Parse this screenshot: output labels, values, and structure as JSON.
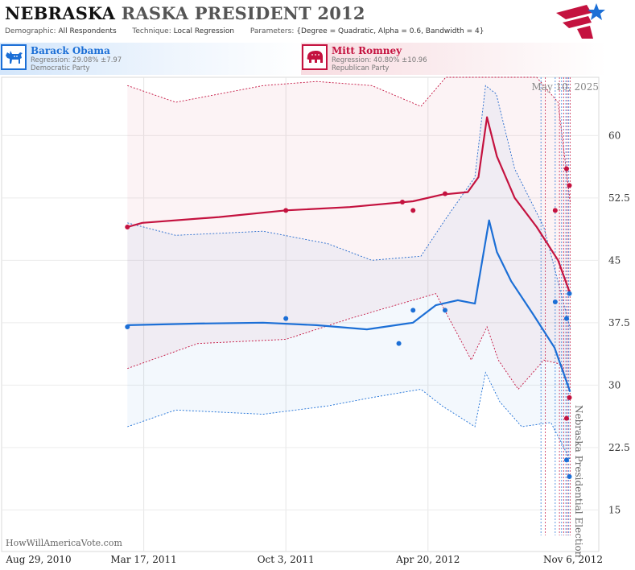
{
  "header": {
    "title_state": "NEBRASKA",
    "title_rest": "RASKA PRESIDENT 2012",
    "demographic_label": "Demographic:",
    "demographic_value": "All Respondents",
    "technique_label": "Technique:",
    "technique_value": "Local Regression",
    "parameters_label": "Parameters:",
    "parameters_value": "{Degree = Quadratic, Alpha = 0.6, Bandwidth = 4}"
  },
  "candidates": {
    "dem": {
      "name": "Barack Obama",
      "regression": "Regression: 29.08% ±7.97",
      "party": "Democratic Party",
      "color": "#1c6fd6"
    },
    "rep": {
      "name": "Mitt Romney",
      "regression": "Regression: 40.80% ±10.96",
      "party": "Republican Party",
      "color": "#c4123f"
    }
  },
  "watermark": "HowWillAmericaVote.com",
  "chart_data": {
    "type": "line",
    "date_label": "May 10, 2025",
    "event_label": "Nebraska Presidential Election",
    "x_ticks": [
      "Aug 29, 2010",
      "Mar 17, 2011",
      "Oct 3, 2011",
      "Apr 20, 2012",
      "Nov 6, 2012"
    ],
    "x_range": [
      "2010-08-29",
      "2012-11-06"
    ],
    "ylim": [
      10,
      67
    ],
    "y_ticks": [
      15,
      22.5,
      30,
      37.5,
      45,
      52.5,
      60
    ],
    "y_tick_labels": [
      "15",
      "22.5",
      "30",
      "37.5",
      "45",
      "52.5",
      "60"
    ],
    "grid": true,
    "poll_dates": [
      "2012-09-26",
      "2012-10-02",
      "2012-10-16",
      "2012-10-22",
      "2012-10-25",
      "2012-10-28",
      "2012-10-31",
      "2012-11-02",
      "2012-11-04",
      "2012-11-06"
    ],
    "series": [
      {
        "name": "Barack Obama",
        "color": "#1c6fd6",
        "points": [
          {
            "x": "2011-02-22",
            "y": 37
          },
          {
            "x": "2011-10-03",
            "y": 38
          },
          {
            "x": "2012-03-10",
            "y": 35
          },
          {
            "x": "2012-03-30",
            "y": 39
          },
          {
            "x": "2012-05-14",
            "y": 39
          },
          {
            "x": "2012-10-16",
            "y": 40
          },
          {
            "x": "2012-11-01",
            "y": 38
          },
          {
            "x": "2012-11-01",
            "y": 21
          },
          {
            "x": "2012-11-05",
            "y": 41
          },
          {
            "x": "2012-11-05",
            "y": 19
          }
        ],
        "trend": [
          {
            "x": "2011-02-22",
            "y": 37.2
          },
          {
            "x": "2011-06-01",
            "y": 37.4
          },
          {
            "x": "2011-09-01",
            "y": 37.5
          },
          {
            "x": "2011-11-15",
            "y": 37.2
          },
          {
            "x": "2012-01-25",
            "y": 36.7
          },
          {
            "x": "2012-03-30",
            "y": 37.5
          },
          {
            "x": "2012-05-01",
            "y": 39.6
          },
          {
            "x": "2012-06-01",
            "y": 40.2
          },
          {
            "x": "2012-06-25",
            "y": 39.8
          },
          {
            "x": "2012-07-15",
            "y": 49.8
          },
          {
            "x": "2012-07-26",
            "y": 46
          },
          {
            "x": "2012-08-15",
            "y": 42.5
          },
          {
            "x": "2012-09-15",
            "y": 38.5
          },
          {
            "x": "2012-10-15",
            "y": 34.5
          },
          {
            "x": "2012-11-06",
            "y": 29.2
          }
        ],
        "upper": [
          {
            "x": "2011-02-22",
            "y": 49.5
          },
          {
            "x": "2011-05-01",
            "y": 48
          },
          {
            "x": "2011-09-01",
            "y": 48.5
          },
          {
            "x": "2011-12-01",
            "y": 47
          },
          {
            "x": "2012-02-01",
            "y": 45
          },
          {
            "x": "2012-04-10",
            "y": 45.5
          },
          {
            "x": "2012-05-15",
            "y": 50
          },
          {
            "x": "2012-06-25",
            "y": 55
          },
          {
            "x": "2012-07-10",
            "y": 66
          },
          {
            "x": "2012-07-25",
            "y": 65
          },
          {
            "x": "2012-08-20",
            "y": 56
          },
          {
            "x": "2012-09-30",
            "y": 49
          },
          {
            "x": "2012-11-06",
            "y": 36.8
          }
        ],
        "lower": [
          {
            "x": "2011-02-22",
            "y": 25
          },
          {
            "x": "2011-05-01",
            "y": 27
          },
          {
            "x": "2011-09-01",
            "y": 26.5
          },
          {
            "x": "2011-12-01",
            "y": 27.5
          },
          {
            "x": "2012-02-01",
            "y": 28.5
          },
          {
            "x": "2012-04-10",
            "y": 29.5
          },
          {
            "x": "2012-05-10",
            "y": 27.5
          },
          {
            "x": "2012-06-25",
            "y": 25
          },
          {
            "x": "2012-07-10",
            "y": 31.5
          },
          {
            "x": "2012-07-30",
            "y": 28
          },
          {
            "x": "2012-08-30",
            "y": 25
          },
          {
            "x": "2012-10-10",
            "y": 25.5
          },
          {
            "x": "2012-11-06",
            "y": 21
          }
        ]
      },
      {
        "name": "Mitt Romney",
        "color": "#c4123f",
        "points": [
          {
            "x": "2011-02-22",
            "y": 49
          },
          {
            "x": "2011-10-03",
            "y": 51
          },
          {
            "x": "2012-03-15",
            "y": 52
          },
          {
            "x": "2012-03-30",
            "y": 51
          },
          {
            "x": "2012-05-14",
            "y": 53
          },
          {
            "x": "2012-10-16",
            "y": 51
          },
          {
            "x": "2012-11-01",
            "y": 56
          },
          {
            "x": "2012-11-01",
            "y": 26
          },
          {
            "x": "2012-11-05",
            "y": 54
          },
          {
            "x": "2012-11-05",
            "y": 28.5
          }
        ],
        "trend": [
          {
            "x": "2011-02-22",
            "y": 49
          },
          {
            "x": "2011-03-15",
            "y": 49.5
          },
          {
            "x": "2011-07-01",
            "y": 50.2
          },
          {
            "x": "2011-10-03",
            "y": 51
          },
          {
            "x": "2012-01-01",
            "y": 51.4
          },
          {
            "x": "2012-03-30",
            "y": 52.1
          },
          {
            "x": "2012-05-10",
            "y": 52.9
          },
          {
            "x": "2012-06-15",
            "y": 53.2
          },
          {
            "x": "2012-06-30",
            "y": 55
          },
          {
            "x": "2012-07-12",
            "y": 62.2
          },
          {
            "x": "2012-07-26",
            "y": 57.5
          },
          {
            "x": "2012-08-20",
            "y": 52.5
          },
          {
            "x": "2012-09-20",
            "y": 49
          },
          {
            "x": "2012-10-20",
            "y": 45
          },
          {
            "x": "2012-11-06",
            "y": 41
          }
        ],
        "upper": [
          {
            "x": "2011-02-22",
            "y": 66
          },
          {
            "x": "2011-05-01",
            "y": 64
          },
          {
            "x": "2011-09-01",
            "y": 66
          },
          {
            "x": "2011-11-15",
            "y": 66.5
          },
          {
            "x": "2012-02-01",
            "y": 66
          },
          {
            "x": "2012-04-10",
            "y": 63.5
          },
          {
            "x": "2012-05-15",
            "y": 67
          },
          {
            "x": "2012-06-30",
            "y": 67
          },
          {
            "x": "2012-07-15",
            "y": 67
          },
          {
            "x": "2012-08-05",
            "y": 67
          },
          {
            "x": "2012-09-20",
            "y": 67
          },
          {
            "x": "2012-10-20",
            "y": 64
          },
          {
            "x": "2012-11-06",
            "y": 52
          }
        ],
        "lower": [
          {
            "x": "2011-02-22",
            "y": 32
          },
          {
            "x": "2011-06-01",
            "y": 35
          },
          {
            "x": "2011-10-03",
            "y": 35.5
          },
          {
            "x": "2012-01-01",
            "y": 38
          },
          {
            "x": "2012-03-01",
            "y": 39.5
          },
          {
            "x": "2012-05-01",
            "y": 41
          },
          {
            "x": "2012-06-20",
            "y": 33
          },
          {
            "x": "2012-07-12",
            "y": 37
          },
          {
            "x": "2012-07-28",
            "y": 33
          },
          {
            "x": "2012-08-25",
            "y": 29.5
          },
          {
            "x": "2012-09-30",
            "y": 33
          },
          {
            "x": "2012-10-25",
            "y": 32.5
          },
          {
            "x": "2012-11-06",
            "y": 29
          }
        ]
      }
    ]
  }
}
